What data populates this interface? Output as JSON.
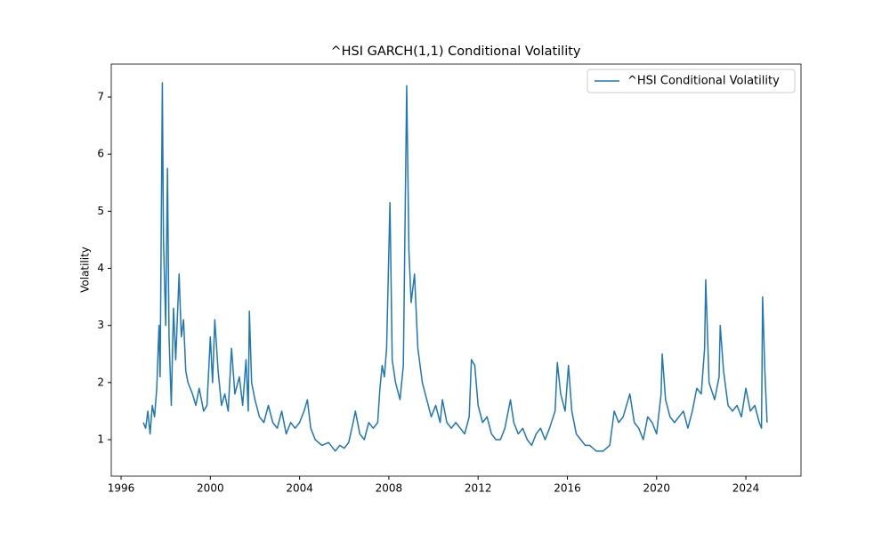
{
  "chart_data": {
    "type": "line",
    "title": "^HSI GARCH(1,1) Conditional Volatility",
    "y_label": "Volatility",
    "x": [
      1997.0,
      1997.1,
      1997.2,
      1997.3,
      1997.4,
      1997.5,
      1997.6,
      1997.7,
      1997.75,
      1997.85,
      1997.9,
      1998.0,
      1998.08,
      1998.15,
      1998.25,
      1998.35,
      1998.45,
      1998.6,
      1998.7,
      1998.8,
      1998.9,
      1999.0,
      1999.2,
      1999.35,
      1999.5,
      1999.7,
      1999.85,
      2000.0,
      2000.1,
      2000.2,
      2000.35,
      2000.5,
      2000.65,
      2000.8,
      2000.95,
      2001.1,
      2001.3,
      2001.45,
      2001.6,
      2001.7,
      2001.75,
      2001.85,
      2002.0,
      2002.2,
      2002.4,
      2002.6,
      2002.8,
      2003.0,
      2003.2,
      2003.4,
      2003.6,
      2003.8,
      2004.0,
      2004.2,
      2004.35,
      2004.5,
      2004.7,
      2005.0,
      2005.3,
      2005.6,
      2005.8,
      2006.0,
      2006.2,
      2006.4,
      2006.5,
      2006.7,
      2006.9,
      2007.1,
      2007.3,
      2007.5,
      2007.6,
      2007.7,
      2007.8,
      2007.9,
      2008.05,
      2008.15,
      2008.3,
      2008.5,
      2008.65,
      2008.8,
      2008.9,
      2009.0,
      2009.15,
      2009.3,
      2009.5,
      2009.7,
      2009.9,
      2010.1,
      2010.3,
      2010.4,
      2010.6,
      2010.8,
      2011.0,
      2011.2,
      2011.4,
      2011.6,
      2011.7,
      2011.85,
      2012.0,
      2012.2,
      2012.4,
      2012.6,
      2012.8,
      2013.0,
      2013.2,
      2013.45,
      2013.6,
      2013.8,
      2014.0,
      2014.2,
      2014.4,
      2014.6,
      2014.8,
      2015.0,
      2015.2,
      2015.45,
      2015.55,
      2015.7,
      2015.9,
      2016.05,
      2016.2,
      2016.4,
      2016.6,
      2016.8,
      2017.0,
      2017.3,
      2017.6,
      2017.9,
      2018.1,
      2018.3,
      2018.5,
      2018.8,
      2019.0,
      2019.2,
      2019.4,
      2019.6,
      2019.8,
      2020.0,
      2020.2,
      2020.25,
      2020.4,
      2020.6,
      2020.8,
      2021.0,
      2021.2,
      2021.4,
      2021.6,
      2021.8,
      2022.0,
      2022.15,
      2022.2,
      2022.35,
      2022.6,
      2022.8,
      2022.85,
      2023.0,
      2023.2,
      2023.4,
      2023.6,
      2023.8,
      2024.0,
      2024.2,
      2024.4,
      2024.6,
      2024.7,
      2024.75,
      2024.85,
      2024.95
    ],
    "series": [
      {
        "name": "^HSI Conditional Volatility",
        "color": "#1f77b4",
        "values": [
          1.3,
          1.2,
          1.5,
          1.1,
          1.6,
          1.4,
          1.9,
          3.0,
          2.1,
          7.25,
          4.5,
          3.0,
          5.75,
          2.8,
          1.6,
          3.3,
          2.4,
          3.9,
          2.8,
          3.1,
          2.2,
          2.0,
          1.8,
          1.6,
          1.9,
          1.5,
          1.6,
          2.8,
          2.0,
          3.1,
          2.2,
          1.6,
          1.8,
          1.5,
          2.6,
          1.8,
          2.1,
          1.6,
          2.4,
          1.5,
          3.25,
          2.0,
          1.7,
          1.4,
          1.3,
          1.6,
          1.3,
          1.2,
          1.5,
          1.1,
          1.3,
          1.2,
          1.3,
          1.5,
          1.7,
          1.2,
          1.0,
          0.9,
          0.95,
          0.8,
          0.9,
          0.85,
          0.95,
          1.3,
          1.5,
          1.1,
          1.0,
          1.3,
          1.2,
          1.3,
          1.9,
          2.3,
          2.1,
          2.6,
          5.15,
          2.4,
          2.0,
          1.7,
          2.3,
          7.2,
          4.3,
          3.4,
          3.9,
          2.6,
          2.0,
          1.7,
          1.4,
          1.6,
          1.3,
          1.7,
          1.3,
          1.2,
          1.3,
          1.2,
          1.1,
          1.4,
          2.4,
          2.3,
          1.6,
          1.3,
          1.4,
          1.1,
          1.0,
          1.0,
          1.2,
          1.7,
          1.3,
          1.1,
          1.2,
          1.0,
          0.9,
          1.1,
          1.2,
          1.0,
          1.2,
          1.5,
          2.35,
          1.8,
          1.5,
          2.3,
          1.5,
          1.1,
          1.0,
          0.9,
          0.9,
          0.8,
          0.8,
          0.9,
          1.5,
          1.3,
          1.4,
          1.8,
          1.3,
          1.2,
          1.0,
          1.4,
          1.3,
          1.1,
          1.8,
          2.5,
          1.7,
          1.4,
          1.3,
          1.4,
          1.5,
          1.2,
          1.5,
          1.9,
          1.8,
          2.6,
          3.8,
          2.0,
          1.7,
          2.1,
          3.0,
          2.2,
          1.6,
          1.5,
          1.6,
          1.4,
          1.9,
          1.5,
          1.6,
          1.3,
          1.2,
          3.5,
          2.2,
          1.3
        ]
      }
    ],
    "xlim": [
      1995.56,
      2026.47
    ],
    "ylim": [
      0.361,
      7.577
    ],
    "xticks": [
      1996,
      2000,
      2004,
      2008,
      2012,
      2016,
      2020,
      2024
    ],
    "yticks": [
      1,
      2,
      3,
      4,
      5,
      6,
      7
    ],
    "legend": "upper right"
  }
}
